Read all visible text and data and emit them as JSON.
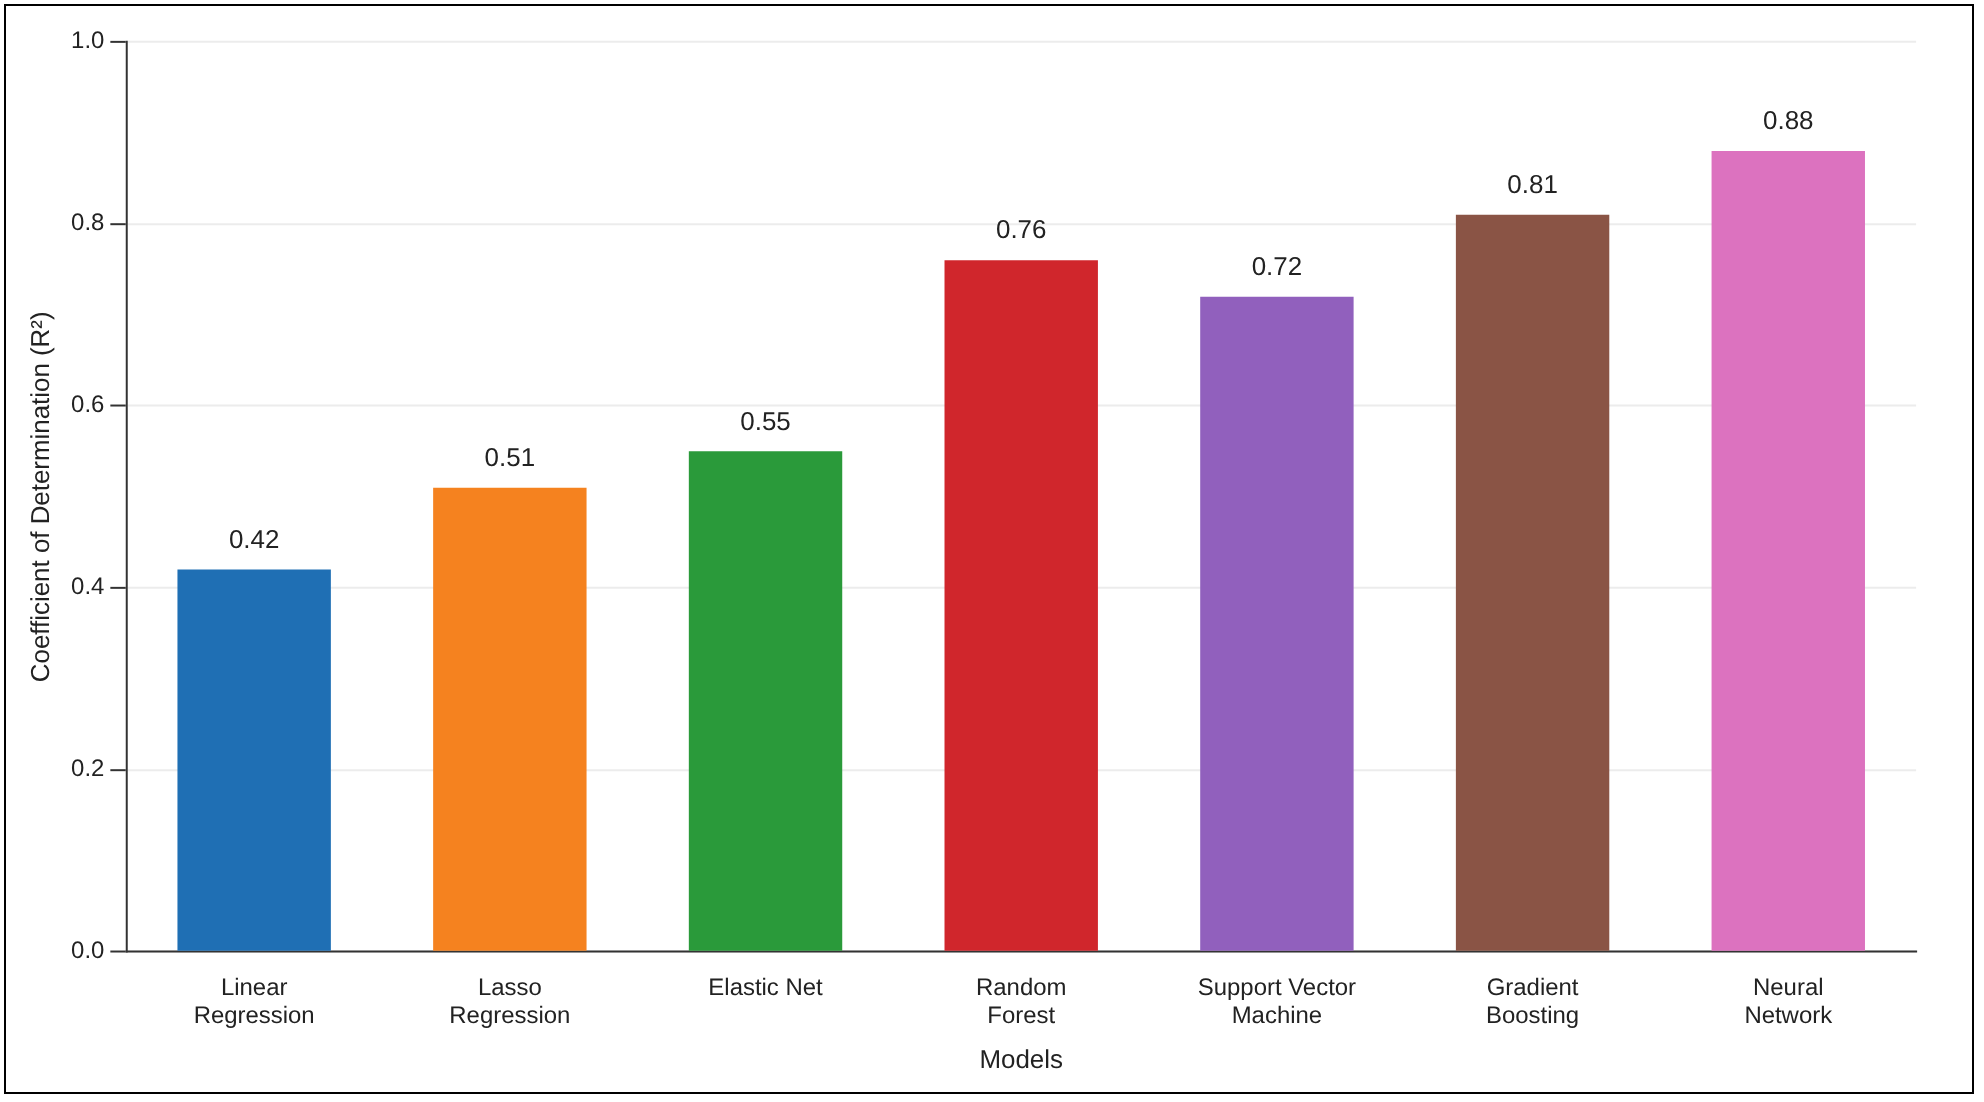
{
  "chart_data": {
    "type": "bar",
    "xlabel": "Models",
    "ylabel": "Coefficient of Determination (R²)",
    "categories": [
      "Linear Regression",
      "Lasso Regression",
      "Elastic Net",
      "Random Forest",
      "Support Vector Machine",
      "Gradient Boosting",
      "Neural Network"
    ],
    "values": [
      0.42,
      0.51,
      0.55,
      0.76,
      0.72,
      0.81,
      0.88
    ],
    "colors": [
      "#1f6fb4",
      "#f5821f",
      "#2a9a3a",
      "#d0262c",
      "#9160bd",
      "#8a5445",
      "#dc72bf"
    ],
    "ylim": [
      0,
      1
    ],
    "yticks": [
      {
        "value": 0,
        "label": "0.0"
      },
      {
        "value": 0.2,
        "label": "0.2"
      },
      {
        "value": 0.4,
        "label": "0.4"
      },
      {
        "value": 0.6,
        "label": "0.6"
      },
      {
        "value": 0.8,
        "label": "0.8"
      },
      {
        "value": 1,
        "label": "1.0"
      }
    ],
    "grid": "y",
    "data_labels": true
  }
}
